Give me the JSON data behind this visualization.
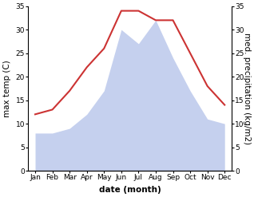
{
  "months": [
    "Jan",
    "Feb",
    "Mar",
    "Apr",
    "May",
    "Jun",
    "Jul",
    "Aug",
    "Sep",
    "Oct",
    "Nov",
    "Dec"
  ],
  "temperature": [
    12,
    13,
    17,
    22,
    26,
    34,
    34,
    32,
    32,
    25,
    18,
    14
  ],
  "precipitation": [
    8,
    8,
    9,
    12,
    17,
    30,
    27,
    32,
    24,
    17,
    11,
    10
  ],
  "temp_color": "#cc3333",
  "precip_fill_color": "#c5d0ee",
  "background_color": "#ffffff",
  "ylim_temp": [
    0,
    35
  ],
  "ylim_precip": [
    0,
    35
  ],
  "xlabel": "date (month)",
  "ylabel_left": "max temp (C)",
  "ylabel_right": "med. precipitation (kg/m2)",
  "tick_fontsize": 6.5,
  "xlabel_fontsize": 7.5,
  "ylabel_fontsize": 7.5
}
